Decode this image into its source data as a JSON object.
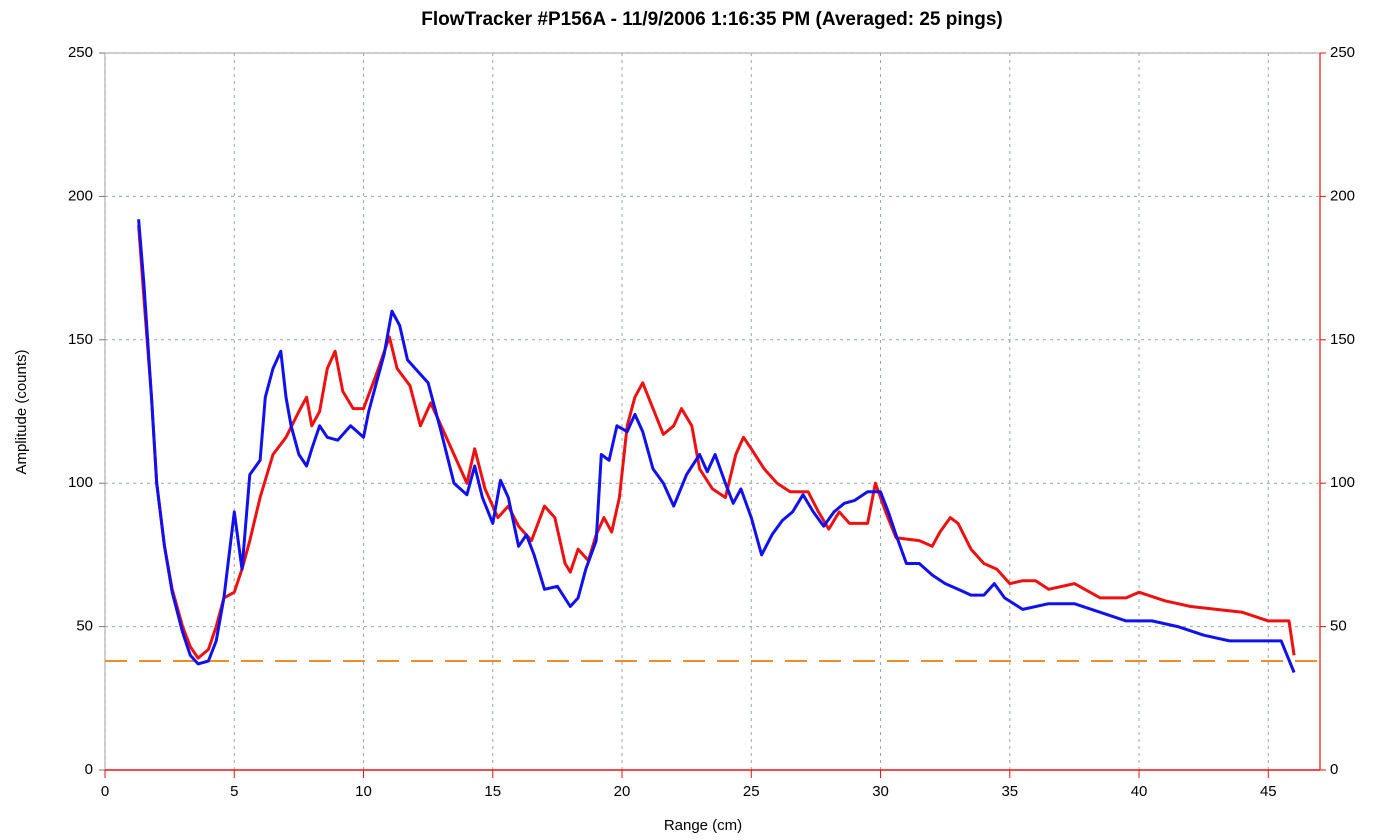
{
  "chart_data": {
    "type": "line",
    "title": "FlowTracker #P156A  -  11/9/2006 1:16:35 PM (Averaged: 25 pings)",
    "x_label": "Range (cm)",
    "y_label": "Amplitude (counts)",
    "xlim": [
      0,
      47
    ],
    "xticks": [
      0,
      5,
      10,
      15,
      20,
      25,
      30,
      35,
      40,
      45
    ],
    "ylim": [
      0,
      250
    ],
    "yticks": [
      0,
      50,
      100,
      150,
      200,
      250
    ],
    "y2lim": [
      0,
      250
    ],
    "y2ticks": [
      0,
      50,
      100,
      150,
      200,
      250
    ],
    "grid": true,
    "threshold": {
      "value": 38,
      "color": "#e8902a"
    },
    "series": [
      {
        "color": "#ee1111",
        "x": [
          1.3,
          1.5,
          1.8,
          2,
          2.3,
          2.6,
          3,
          3.3,
          3.6,
          4,
          4.3,
          4.6,
          5,
          5.3,
          5.6,
          6,
          6.5,
          7,
          7.5,
          7.8,
          8,
          8.3,
          8.6,
          8.9,
          9.2,
          9.6,
          10,
          10.5,
          11,
          11.3,
          11.8,
          12.2,
          12.6,
          13,
          13.5,
          14,
          14.3,
          14.7,
          15.2,
          15.6,
          16,
          16.5,
          17,
          17.4,
          17.8,
          18,
          18.3,
          18.7,
          19,
          19.3,
          19.6,
          19.9,
          20.2,
          20.5,
          20.8,
          21.2,
          21.6,
          22,
          22.3,
          22.7,
          23,
          23.5,
          24,
          24.4,
          24.7,
          25,
          25.5,
          26,
          26.5,
          27.2,
          27.6,
          28,
          28.4,
          28.8,
          29.5,
          29.8,
          30.2,
          30.6,
          31.5,
          32,
          32.3,
          32.7,
          33,
          33.5,
          34,
          34.5,
          35,
          35.5,
          36,
          36.5,
          37.5,
          38.5,
          39.5,
          40,
          41,
          42,
          43,
          44,
          45,
          45.8,
          46
        ],
        "values": [
          190,
          165,
          130,
          100,
          78,
          63,
          50,
          43,
          39,
          42,
          50,
          60,
          62,
          70,
          80,
          95,
          110,
          116,
          125,
          130,
          120,
          125,
          140,
          146,
          132,
          126,
          126,
          138,
          151,
          140,
          134,
          120,
          128,
          120,
          110,
          100,
          112,
          98,
          88,
          92,
          85,
          80,
          92,
          88,
          72,
          69,
          77,
          73,
          82,
          88,
          83,
          95,
          120,
          130,
          135,
          126,
          117,
          120,
          126,
          120,
          105,
          98,
          95,
          110,
          116,
          112,
          105,
          100,
          97,
          97,
          90,
          84,
          90,
          86,
          86,
          100,
          90,
          81,
          80,
          78,
          83,
          88,
          86,
          77,
          72,
          70,
          65,
          66,
          66,
          63,
          65,
          60,
          60,
          62,
          59,
          57,
          56,
          55,
          52,
          52,
          40
        ]
      },
      {
        "color": "#1111ee",
        "x": [
          1.3,
          1.5,
          1.8,
          2,
          2.3,
          2.6,
          3,
          3.3,
          3.6,
          4,
          4.3,
          4.6,
          5,
          5.3,
          5.6,
          6,
          6.2,
          6.5,
          6.8,
          7,
          7.2,
          7.5,
          7.8,
          8,
          8.3,
          8.6,
          9,
          9.5,
          10,
          10.2,
          10.5,
          10.8,
          11.1,
          11.4,
          11.7,
          12,
          12.5,
          13,
          13.5,
          14,
          14.3,
          14.6,
          15,
          15.3,
          15.6,
          16,
          16.3,
          16.6,
          17,
          17.5,
          18,
          18.3,
          18.6,
          19,
          19.2,
          19.5,
          19.8,
          20.2,
          20.5,
          20.8,
          21.2,
          21.6,
          22,
          22.5,
          23,
          23.3,
          23.6,
          24,
          24.3,
          24.6,
          25,
          25.4,
          25.8,
          26.2,
          26.6,
          27,
          27.4,
          27.8,
          28.2,
          28.6,
          29,
          29.5,
          30,
          30.3,
          30.6,
          31,
          31.5,
          32,
          32.5,
          33,
          33.5,
          34,
          34.4,
          34.8,
          35.5,
          36.5,
          37.5,
          38.5,
          39.5,
          40.5,
          41.5,
          42.5,
          43.5,
          44.5,
          45.5,
          46
        ],
        "values": [
          192,
          170,
          130,
          100,
          78,
          62,
          48,
          40,
          37,
          38,
          45,
          60,
          90,
          70,
          103,
          108,
          130,
          140,
          146,
          130,
          120,
          110,
          106,
          112,
          120,
          116,
          115,
          120,
          116,
          125,
          135,
          145,
          160,
          155,
          143,
          140,
          135,
          118,
          100,
          96,
          106,
          95,
          86,
          101,
          95,
          78,
          82,
          75,
          63,
          64,
          57,
          60,
          70,
          80,
          110,
          108,
          120,
          118,
          124,
          118,
          105,
          100,
          92,
          103,
          110,
          104,
          110,
          100,
          93,
          98,
          88,
          75,
          82,
          87,
          90,
          96,
          90,
          85,
          90,
          93,
          94,
          97,
          97,
          90,
          82,
          72,
          72,
          68,
          65,
          63,
          61,
          61,
          65,
          60,
          56,
          58,
          58,
          55,
          52,
          52,
          50,
          47,
          45,
          45,
          45,
          34
        ]
      }
    ]
  }
}
